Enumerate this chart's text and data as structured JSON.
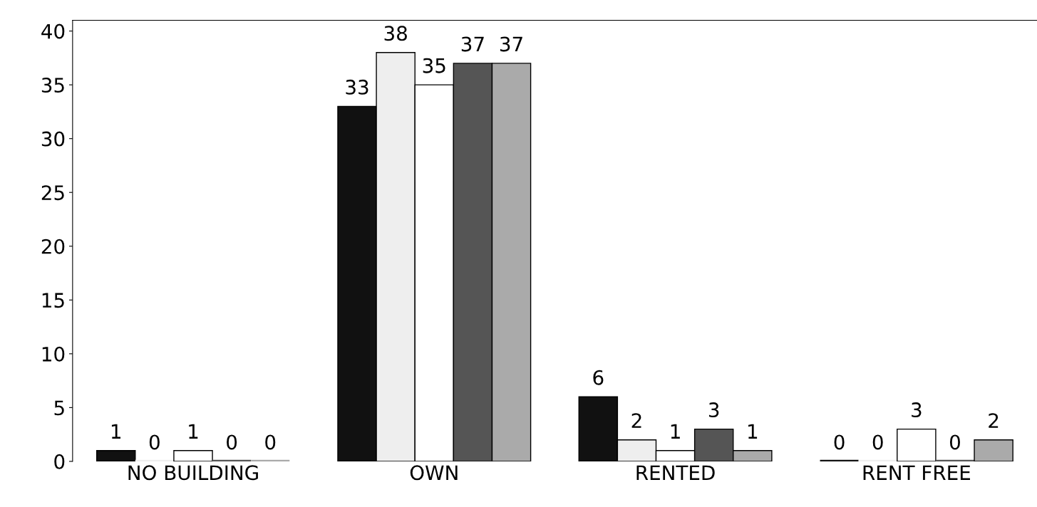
{
  "chart_data": {
    "type": "bar",
    "categories": [
      "NO BUILDING",
      "OWN",
      "RENTED",
      "RENT FREE"
    ],
    "series": [
      {
        "color": "#111111",
        "values": [
          1,
          33,
          6,
          0
        ]
      },
      {
        "color": "#eeeeee",
        "values": [
          0,
          38,
          2,
          0
        ]
      },
      {
        "color": "#ffffff",
        "values": [
          1,
          35,
          1,
          3
        ]
      },
      {
        "color": "#555555",
        "values": [
          0,
          37,
          3,
          0
        ]
      },
      {
        "color": "#aaaaaa",
        "values": [
          0,
          37,
          1,
          2
        ]
      }
    ],
    "ylim": [
      0,
      41
    ],
    "yticks": [
      0,
      5,
      10,
      15,
      20,
      25,
      30,
      35,
      40
    ],
    "grid": false,
    "data_labels": true
  }
}
